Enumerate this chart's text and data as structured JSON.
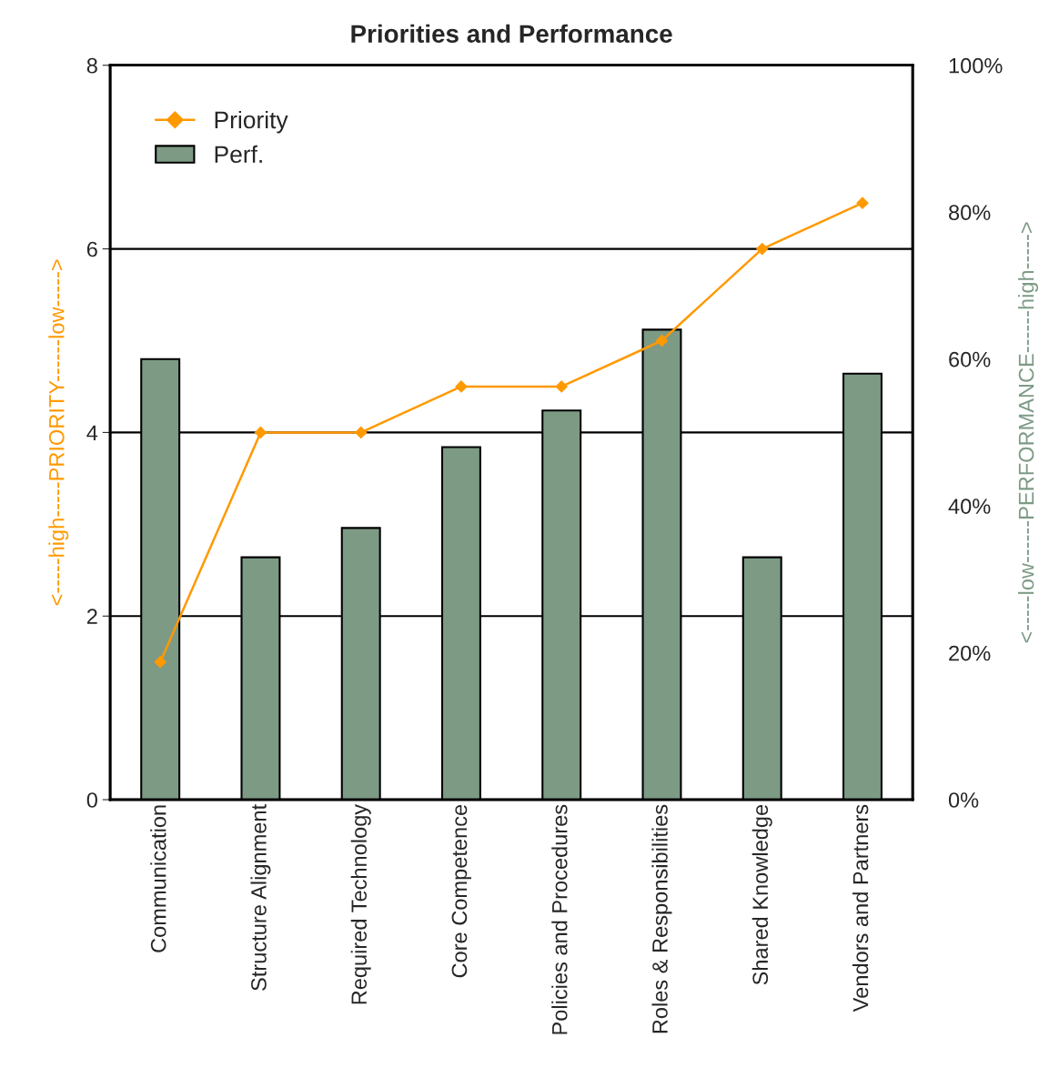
{
  "chart_data": {
    "type": "bar",
    "title": "Priorities and Performance",
    "categories": [
      "Communication",
      "Structure Alignment",
      "Required Technology",
      "Core Competence",
      "Policies and Procedures",
      "Roles & Responsibilities",
      "Shared Knowledge",
      "Vendors and Partners"
    ],
    "series": [
      {
        "name": "Priority",
        "type": "line",
        "color": "#ff9900",
        "marker": "diamond",
        "values": [
          1.5,
          4.0,
          4.0,
          4.5,
          4.5,
          5.0,
          6.0,
          6.5
        ]
      },
      {
        "name": "Perf.",
        "axis": "y2",
        "color": "#7d9a85",
        "values": [
          60,
          33,
          37,
          48,
          53,
          64,
          33,
          58
        ]
      }
    ],
    "ylabel": "<-----high-----PRIORITY------low----->",
    "y2label": "<-----low------PERFORMANCE------high----->",
    "ylim": [
      0,
      8
    ],
    "yticks": [
      0,
      2,
      4,
      6,
      8
    ],
    "y2lim": [
      0,
      100
    ],
    "y2ticks": [
      {
        "value": 0,
        "label": "0%"
      },
      {
        "value": 20,
        "label": "20%"
      },
      {
        "value": 40,
        "label": "40%"
      },
      {
        "value": 60,
        "label": "60%"
      },
      {
        "value": 80,
        "label": "80%"
      },
      {
        "value": 100,
        "label": "100%"
      }
    ],
    "grid": "y",
    "legend": "top left"
  }
}
